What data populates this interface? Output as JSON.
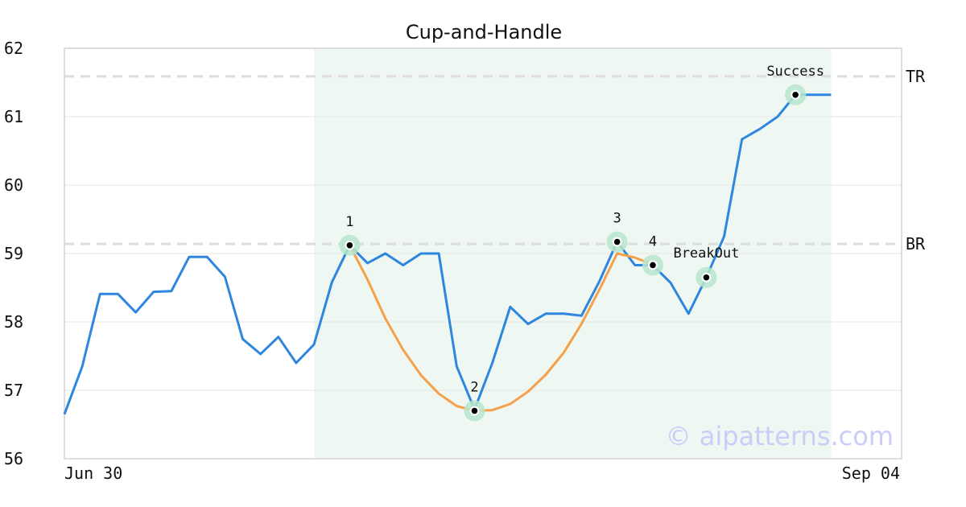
{
  "chart_data": {
    "type": "line",
    "title": "Cup-and-Handle",
    "xlabel": "",
    "ylabel": "",
    "ylim": [
      56,
      62
    ],
    "y_ticks": [
      "56",
      "57",
      "58",
      "59",
      "60",
      "61",
      "62"
    ],
    "x_ticks": [
      "Jun 30",
      "Sep 04"
    ],
    "grid": "horizontal",
    "watermark": "© aipatterns.com",
    "colors": {
      "price": "#2e86de",
      "cup": "#f5a04a",
      "highlight": "#eef7f2",
      "marker_ring": "#b6e6cc",
      "level_line": "#dddddd"
    },
    "highlight_range": [
      14,
      43
    ],
    "levels": [
      {
        "name": "TR",
        "value": 61.59
      },
      {
        "name": "BR",
        "value": 59.14
      }
    ],
    "series": [
      {
        "values": [
          56.65,
          57.35,
          58.41,
          58.41,
          58.14,
          58.44,
          58.45,
          58.95,
          58.95,
          58.66,
          57.75,
          57.53,
          57.78,
          57.4,
          57.67,
          58.58,
          59.12,
          58.86,
          59.0,
          58.83,
          59.0,
          59.0,
          57.35,
          56.72,
          57.4,
          58.22,
          57.97,
          58.12,
          58.12,
          58.09,
          58.59,
          59.17,
          58.83,
          58.83,
          58.57,
          58.12,
          58.65,
          59.25,
          60.67,
          60.82,
          61.0,
          61.32,
          61.32,
          61.32
        ]
      }
    ],
    "cup_curve": {
      "x": [
        16,
        17,
        18,
        19,
        20,
        21,
        22,
        23,
        24,
        25,
        26,
        27,
        28,
        29,
        30,
        31,
        32,
        33
      ],
      "values": [
        59.12,
        58.62,
        58.05,
        57.59,
        57.22,
        56.95,
        56.77,
        56.7,
        56.71,
        56.8,
        56.98,
        57.23,
        57.55,
        57.97,
        58.47,
        59.0,
        58.94,
        58.84
      ]
    },
    "markers": [
      {
        "label": "1",
        "x": 16,
        "y": 59.12
      },
      {
        "label": "2",
        "x": 23,
        "y": 56.7
      },
      {
        "label": "3",
        "x": 31,
        "y": 59.17
      },
      {
        "label": "4",
        "x": 33,
        "y": 58.83
      },
      {
        "label": "BreakOut",
        "x": 36,
        "y": 58.65
      },
      {
        "label": "Success",
        "x": 41,
        "y": 61.32
      }
    ]
  }
}
